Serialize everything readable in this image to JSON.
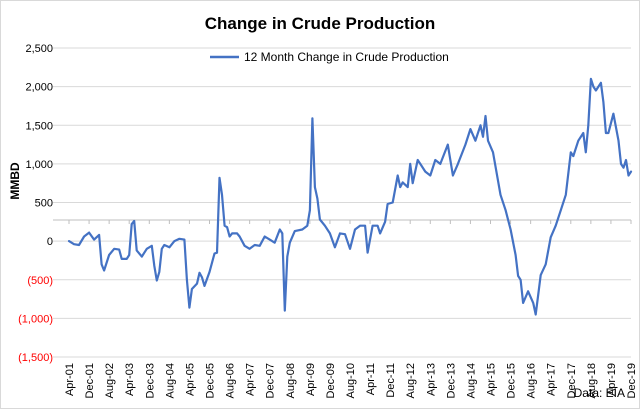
{
  "chart_data": {
    "type": "line",
    "title": "Change in Crude Production",
    "ylabel": "MMBD",
    "xlabel": "",
    "source": "Data: EIA",
    "legend_position": "top-center",
    "grid": {
      "horizontal": true,
      "vertical": false
    },
    "ylim": [
      -1500,
      2500
    ],
    "yticks": [
      {
        "value": 2500,
        "label": "2,500"
      },
      {
        "value": 2000,
        "label": "2,000"
      },
      {
        "value": 1500,
        "label": "1,500"
      },
      {
        "value": 1000,
        "label": "1,000"
      },
      {
        "value": 500,
        "label": "500"
      },
      {
        "value": 0,
        "label": "0"
      },
      {
        "value": -500,
        "label": "(500)"
      },
      {
        "value": -1000,
        "label": "(1,000)"
      },
      {
        "value": -1500,
        "label": "(1,500)"
      }
    ],
    "negative_tick_color": "#ff0000",
    "xticks": [
      "Apr-01",
      "Dec-01",
      "Aug-02",
      "Apr-03",
      "Dec-03",
      "Aug-04",
      "Apr-05",
      "Dec-05",
      "Aug-06",
      "Apr-07",
      "Dec-07",
      "Aug-08",
      "Apr-09",
      "Dec-09",
      "Aug-10",
      "Apr-11",
      "Dec-11",
      "Aug-12",
      "Apr-13",
      "Dec-13",
      "Aug-14",
      "Apr-15",
      "Dec-15",
      "Aug-16",
      "Apr-17",
      "Dec-17",
      "Aug-18",
      "Apr-19",
      "Dec-19"
    ],
    "x_start": "2001-04",
    "x_end": "2019-12",
    "series": [
      {
        "name": "12 Month Change in Crude Production",
        "color": "#4472c4",
        "points": [
          [
            "2001-04",
            0
          ],
          [
            "2001-06",
            -40
          ],
          [
            "2001-08",
            -50
          ],
          [
            "2001-10",
            60
          ],
          [
            "2001-12",
            110
          ],
          [
            "2002-02",
            20
          ],
          [
            "2002-04",
            80
          ],
          [
            "2002-05",
            -300
          ],
          [
            "2002-06",
            -380
          ],
          [
            "2002-08",
            -180
          ],
          [
            "2002-10",
            -100
          ],
          [
            "2002-12",
            -110
          ],
          [
            "2003-01",
            -230
          ],
          [
            "2003-03",
            -230
          ],
          [
            "2003-04",
            -180
          ],
          [
            "2003-05",
            220
          ],
          [
            "2003-06",
            260
          ],
          [
            "2003-07",
            -120
          ],
          [
            "2003-09",
            -200
          ],
          [
            "2003-11",
            -100
          ],
          [
            "2004-01",
            -60
          ],
          [
            "2004-02",
            -320
          ],
          [
            "2004-03",
            -510
          ],
          [
            "2004-04",
            -400
          ],
          [
            "2004-05",
            -100
          ],
          [
            "2004-06",
            -50
          ],
          [
            "2004-08",
            -80
          ],
          [
            "2004-10",
            0
          ],
          [
            "2004-12",
            30
          ],
          [
            "2005-02",
            20
          ],
          [
            "2005-03",
            -500
          ],
          [
            "2005-04",
            -860
          ],
          [
            "2005-05",
            -620
          ],
          [
            "2005-07",
            -550
          ],
          [
            "2005-08",
            -410
          ],
          [
            "2005-09",
            -470
          ],
          [
            "2005-10",
            -580
          ],
          [
            "2005-12",
            -400
          ],
          [
            "2006-02",
            -160
          ],
          [
            "2006-03",
            -150
          ],
          [
            "2006-04",
            820
          ],
          [
            "2006-05",
            600
          ],
          [
            "2006-06",
            200
          ],
          [
            "2006-07",
            180
          ],
          [
            "2006-08",
            60
          ],
          [
            "2006-09",
            100
          ],
          [
            "2006-11",
            100
          ],
          [
            "2006-12",
            60
          ],
          [
            "2007-02",
            -60
          ],
          [
            "2007-04",
            -100
          ],
          [
            "2007-06",
            -50
          ],
          [
            "2007-08",
            -60
          ],
          [
            "2007-10",
            60
          ],
          [
            "2007-12",
            20
          ],
          [
            "2008-02",
            -20
          ],
          [
            "2008-04",
            150
          ],
          [
            "2008-05",
            100
          ],
          [
            "2008-06",
            -900
          ],
          [
            "2008-07",
            -200
          ],
          [
            "2008-08",
            -20
          ],
          [
            "2008-10",
            130
          ],
          [
            "2009-01",
            150
          ],
          [
            "2009-03",
            200
          ],
          [
            "2009-04",
            400
          ],
          [
            "2009-05",
            1590
          ],
          [
            "2009-06",
            700
          ],
          [
            "2009-07",
            550
          ],
          [
            "2009-08",
            280
          ],
          [
            "2009-10",
            200
          ],
          [
            "2009-12",
            100
          ],
          [
            "2010-02",
            -80
          ],
          [
            "2010-04",
            100
          ],
          [
            "2010-06",
            90
          ],
          [
            "2010-08",
            -100
          ],
          [
            "2010-10",
            150
          ],
          [
            "2010-12",
            200
          ],
          [
            "2011-02",
            200
          ],
          [
            "2011-03",
            -150
          ],
          [
            "2011-05",
            200
          ],
          [
            "2011-07",
            200
          ],
          [
            "2011-08",
            100
          ],
          [
            "2011-10",
            250
          ],
          [
            "2011-11",
            480
          ],
          [
            "2012-01",
            500
          ],
          [
            "2012-03",
            850
          ],
          [
            "2012-04",
            700
          ],
          [
            "2012-05",
            760
          ],
          [
            "2012-07",
            700
          ],
          [
            "2012-08",
            1000
          ],
          [
            "2012-09",
            750
          ],
          [
            "2012-11",
            1050
          ],
          [
            "2012-12",
            1000
          ],
          [
            "2013-02",
            900
          ],
          [
            "2013-04",
            850
          ],
          [
            "2013-06",
            1050
          ],
          [
            "2013-08",
            1000
          ],
          [
            "2013-11",
            1250
          ],
          [
            "2014-01",
            850
          ],
          [
            "2014-03",
            1000
          ],
          [
            "2014-06",
            1250
          ],
          [
            "2014-08",
            1450
          ],
          [
            "2014-10",
            1300
          ],
          [
            "2014-12",
            1500
          ],
          [
            "2015-01",
            1350
          ],
          [
            "2015-02",
            1620
          ],
          [
            "2015-03",
            1300
          ],
          [
            "2015-05",
            1150
          ],
          [
            "2015-08",
            600
          ],
          [
            "2015-10",
            400
          ],
          [
            "2015-12",
            150
          ],
          [
            "2016-02",
            -180
          ],
          [
            "2016-03",
            -450
          ],
          [
            "2016-04",
            -500
          ],
          [
            "2016-05",
            -800
          ],
          [
            "2016-07",
            -650
          ],
          [
            "2016-09",
            -800
          ],
          [
            "2016-10",
            -950
          ],
          [
            "2016-12",
            -440
          ],
          [
            "2017-02",
            -300
          ],
          [
            "2017-04",
            50
          ],
          [
            "2017-06",
            200
          ],
          [
            "2017-08",
            400
          ],
          [
            "2017-10",
            600
          ],
          [
            "2017-12",
            1150
          ],
          [
            "2018-01",
            1100
          ],
          [
            "2018-03",
            1300
          ],
          [
            "2018-05",
            1400
          ],
          [
            "2018-06",
            1150
          ],
          [
            "2018-07",
            1500
          ],
          [
            "2018-08",
            2100
          ],
          [
            "2018-09",
            2000
          ],
          [
            "2018-10",
            1950
          ],
          [
            "2018-12",
            2050
          ],
          [
            "2019-01",
            1800
          ],
          [
            "2019-02",
            1400
          ],
          [
            "2019-03",
            1400
          ],
          [
            "2019-05",
            1650
          ],
          [
            "2019-07",
            1300
          ],
          [
            "2019-08",
            1000
          ],
          [
            "2019-09",
            950
          ],
          [
            "2019-10",
            1050
          ],
          [
            "2019-11",
            850
          ],
          [
            "2019-12",
            900
          ]
        ]
      }
    ]
  }
}
